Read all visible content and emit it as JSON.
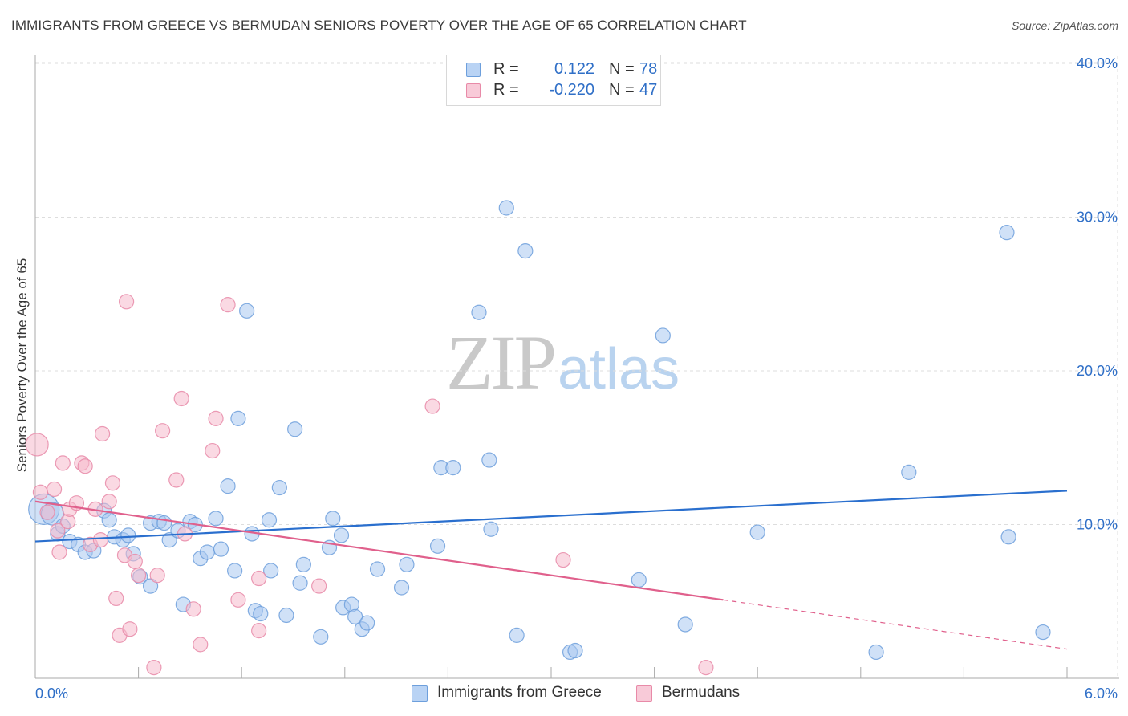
{
  "title": "IMMIGRANTS FROM GREECE VS BERMUDAN SENIORS POVERTY OVER THE AGE OF 65 CORRELATION CHART",
  "source": "Source: ZipAtlas.com",
  "watermark": {
    "zip": "ZIP",
    "atlas": "atlas"
  },
  "colors": {
    "blue_fill": "#a9c9f0",
    "blue_stroke": "#6d9fdc",
    "blue_line": "#2a6fce",
    "pink_fill": "#f5b9cc",
    "pink_stroke": "#e88aa8",
    "pink_line": "#e0608c",
    "tick_text": "#2f6fc7",
    "grid": "#dddddd"
  },
  "legend": {
    "series1": {
      "r_label": "R =",
      "r_value": "0.122",
      "n_label": "N =",
      "n_value": "78"
    },
    "series2": {
      "r_label": "R =",
      "r_value": "-0.220",
      "n_label": "N =",
      "n_value": "47"
    }
  },
  "bottom_legend": {
    "series1": "Immigrants from Greece",
    "series2": "Bermudans"
  },
  "chart_data": {
    "type": "scatter",
    "title": "IMMIGRANTS FROM GREECE VS BERMUDAN SENIORS POVERTY OVER THE AGE OF 65 CORRELATION CHART",
    "xlabel": "",
    "ylabel": "Seniors Poverty Over the Age of 65",
    "xlim": [
      0,
      6
    ],
    "ylim": [
      0,
      42
    ],
    "x_tick_labels": [
      {
        "value": 0,
        "label": "0.0%"
      },
      {
        "value": 6,
        "label": "6.0%"
      }
    ],
    "y_tick_labels": [
      {
        "value": 10,
        "label": "10.0%"
      },
      {
        "value": 20,
        "label": "20.0%"
      },
      {
        "value": 30,
        "label": "30.0%"
      },
      {
        "value": 40,
        "label": "40.0%"
      }
    ],
    "x_minor_ticks": [
      0.6,
      1.2,
      1.8,
      2.4,
      3.0,
      3.6,
      4.2,
      4.8,
      5.4,
      6.0
    ],
    "grid": true,
    "legend_position": "top-center",
    "series": [
      {
        "name": "Immigrants from Greece",
        "trend": {
          "x0": 0,
          "y0": 8.9,
          "x1": 6,
          "y1": 12.2,
          "dashed_from": null
        },
        "points": [
          {
            "x": 0.05,
            "y": 11.0,
            "size": 3
          },
          {
            "x": 0.1,
            "y": 10.7,
            "size": 2
          },
          {
            "x": 0.13,
            "y": 9.4,
            "size": 1
          },
          {
            "x": 0.16,
            "y": 9.9,
            "size": 1
          },
          {
            "x": 0.2,
            "y": 8.9,
            "size": 1
          },
          {
            "x": 0.25,
            "y": 8.7,
            "size": 1
          },
          {
            "x": 0.29,
            "y": 8.2,
            "size": 1
          },
          {
            "x": 0.34,
            "y": 8.3,
            "size": 1
          },
          {
            "x": 0.4,
            "y": 10.9,
            "size": 1
          },
          {
            "x": 0.43,
            "y": 10.3,
            "size": 1
          },
          {
            "x": 0.46,
            "y": 9.2,
            "size": 1
          },
          {
            "x": 0.51,
            "y": 9.0,
            "size": 1
          },
          {
            "x": 0.54,
            "y": 9.3,
            "size": 1
          },
          {
            "x": 0.57,
            "y": 8.1,
            "size": 1
          },
          {
            "x": 0.61,
            "y": 6.6,
            "size": 1
          },
          {
            "x": 0.67,
            "y": 10.1,
            "size": 1
          },
          {
            "x": 0.67,
            "y": 6.0,
            "size": 1
          },
          {
            "x": 0.72,
            "y": 10.2,
            "size": 1
          },
          {
            "x": 0.75,
            "y": 10.1,
            "size": 1
          },
          {
            "x": 0.78,
            "y": 9.0,
            "size": 1
          },
          {
            "x": 0.83,
            "y": 9.6,
            "size": 1
          },
          {
            "x": 0.86,
            "y": 4.8,
            "size": 1
          },
          {
            "x": 0.9,
            "y": 10.2,
            "size": 1
          },
          {
            "x": 0.93,
            "y": 10.0,
            "size": 1
          },
          {
            "x": 0.96,
            "y": 7.8,
            "size": 1
          },
          {
            "x": 1.0,
            "y": 8.2,
            "size": 1
          },
          {
            "x": 1.05,
            "y": 10.4,
            "size": 1
          },
          {
            "x": 1.08,
            "y": 8.4,
            "size": 1
          },
          {
            "x": 1.12,
            "y": 12.5,
            "size": 1
          },
          {
            "x": 1.16,
            "y": 7.0,
            "size": 1
          },
          {
            "x": 1.18,
            "y": 16.9,
            "size": 1
          },
          {
            "x": 1.23,
            "y": 23.9,
            "size": 1
          },
          {
            "x": 1.26,
            "y": 9.4,
            "size": 1
          },
          {
            "x": 1.28,
            "y": 4.4,
            "size": 1
          },
          {
            "x": 1.31,
            "y": 4.2,
            "size": 1
          },
          {
            "x": 1.36,
            "y": 10.3,
            "size": 1
          },
          {
            "x": 1.37,
            "y": 7.0,
            "size": 1
          },
          {
            "x": 1.42,
            "y": 12.4,
            "size": 1
          },
          {
            "x": 1.46,
            "y": 4.1,
            "size": 1
          },
          {
            "x": 1.51,
            "y": 16.2,
            "size": 1
          },
          {
            "x": 1.54,
            "y": 6.2,
            "size": 1
          },
          {
            "x": 1.56,
            "y": 7.4,
            "size": 1
          },
          {
            "x": 1.66,
            "y": 2.7,
            "size": 1
          },
          {
            "x": 1.71,
            "y": 8.5,
            "size": 1
          },
          {
            "x": 1.73,
            "y": 10.4,
            "size": 1
          },
          {
            "x": 1.78,
            "y": 9.3,
            "size": 1
          },
          {
            "x": 1.79,
            "y": 4.6,
            "size": 1
          },
          {
            "x": 1.84,
            "y": 4.8,
            "size": 1
          },
          {
            "x": 1.86,
            "y": 4.0,
            "size": 1
          },
          {
            "x": 1.9,
            "y": 3.2,
            "size": 1
          },
          {
            "x": 1.93,
            "y": 3.6,
            "size": 1
          },
          {
            "x": 1.99,
            "y": 7.1,
            "size": 1
          },
          {
            "x": 2.13,
            "y": 5.9,
            "size": 1
          },
          {
            "x": 2.16,
            "y": 7.4,
            "size": 1
          },
          {
            "x": 2.34,
            "y": 8.6,
            "size": 1
          },
          {
            "x": 2.36,
            "y": 13.7,
            "size": 1
          },
          {
            "x": 2.43,
            "y": 13.7,
            "size": 1
          },
          {
            "x": 2.58,
            "y": 23.8,
            "size": 1
          },
          {
            "x": 2.64,
            "y": 14.2,
            "size": 1
          },
          {
            "x": 2.65,
            "y": 9.7,
            "size": 1
          },
          {
            "x": 2.74,
            "y": 30.6,
            "size": 1
          },
          {
            "x": 2.8,
            "y": 2.8,
            "size": 1
          },
          {
            "x": 2.85,
            "y": 27.8,
            "size": 1
          },
          {
            "x": 3.11,
            "y": 1.7,
            "size": 1
          },
          {
            "x": 3.14,
            "y": 1.8,
            "size": 1
          },
          {
            "x": 3.51,
            "y": 6.4,
            "size": 1
          },
          {
            "x": 3.65,
            "y": 22.3,
            "size": 1
          },
          {
            "x": 3.78,
            "y": 3.5,
            "size": 1
          },
          {
            "x": 4.2,
            "y": 9.5,
            "size": 1
          },
          {
            "x": 4.89,
            "y": 1.7,
            "size": 1
          },
          {
            "x": 5.08,
            "y": 13.4,
            "size": 1
          },
          {
            "x": 5.66,
            "y": 9.2,
            "size": 1
          },
          {
            "x": 5.65,
            "y": 29.0,
            "size": 1
          },
          {
            "x": 5.86,
            "y": 3.0,
            "size": 1
          }
        ]
      },
      {
        "name": "Bermudans",
        "trend": {
          "x0": 0,
          "y0": 11.5,
          "x1": 6,
          "y1": 1.9,
          "dashed_from": 4.0
        },
        "points": [
          {
            "x": 0.01,
            "y": 15.2,
            "size": 2
          },
          {
            "x": 0.03,
            "y": 12.1,
            "size": 1
          },
          {
            "x": 0.07,
            "y": 10.8,
            "size": 1
          },
          {
            "x": 0.11,
            "y": 12.3,
            "size": 1
          },
          {
            "x": 0.13,
            "y": 9.6,
            "size": 1
          },
          {
            "x": 0.14,
            "y": 8.2,
            "size": 1
          },
          {
            "x": 0.16,
            "y": 14.0,
            "size": 1
          },
          {
            "x": 0.19,
            "y": 10.2,
            "size": 1
          },
          {
            "x": 0.2,
            "y": 11.0,
            "size": 1
          },
          {
            "x": 0.24,
            "y": 11.4,
            "size": 1
          },
          {
            "x": 0.27,
            "y": 14.0,
            "size": 1
          },
          {
            "x": 0.29,
            "y": 13.8,
            "size": 1
          },
          {
            "x": 0.32,
            "y": 8.7,
            "size": 1
          },
          {
            "x": 0.35,
            "y": 11.0,
            "size": 1
          },
          {
            "x": 0.38,
            "y": 9.0,
            "size": 1
          },
          {
            "x": 0.39,
            "y": 15.9,
            "size": 1
          },
          {
            "x": 0.43,
            "y": 11.5,
            "size": 1
          },
          {
            "x": 0.45,
            "y": 12.7,
            "size": 1
          },
          {
            "x": 0.47,
            "y": 5.2,
            "size": 1
          },
          {
            "x": 0.49,
            "y": 2.8,
            "size": 1
          },
          {
            "x": 0.52,
            "y": 8.0,
            "size": 1
          },
          {
            "x": 0.53,
            "y": 24.5,
            "size": 1
          },
          {
            "x": 0.55,
            "y": 3.2,
            "size": 1
          },
          {
            "x": 0.58,
            "y": 7.6,
            "size": 1
          },
          {
            "x": 0.6,
            "y": 6.7,
            "size": 1
          },
          {
            "x": 0.69,
            "y": 0.7,
            "size": 1
          },
          {
            "x": 0.71,
            "y": 6.7,
            "size": 1
          },
          {
            "x": 0.74,
            "y": 16.1,
            "size": 1
          },
          {
            "x": 0.82,
            "y": 12.9,
            "size": 1
          },
          {
            "x": 0.85,
            "y": 18.2,
            "size": 1
          },
          {
            "x": 0.87,
            "y": 9.4,
            "size": 1
          },
          {
            "x": 0.92,
            "y": 4.5,
            "size": 1
          },
          {
            "x": 0.96,
            "y": 2.2,
            "size": 1
          },
          {
            "x": 1.03,
            "y": 14.8,
            "size": 1
          },
          {
            "x": 1.05,
            "y": 16.9,
            "size": 1
          },
          {
            "x": 1.12,
            "y": 24.3,
            "size": 1
          },
          {
            "x": 1.18,
            "y": 5.1,
            "size": 1
          },
          {
            "x": 1.3,
            "y": 6.5,
            "size": 1
          },
          {
            "x": 1.3,
            "y": 3.1,
            "size": 1
          },
          {
            "x": 1.65,
            "y": 6.0,
            "size": 1
          },
          {
            "x": 2.31,
            "y": 17.7,
            "size": 1
          },
          {
            "x": 3.07,
            "y": 7.7,
            "size": 1
          },
          {
            "x": 3.9,
            "y": 0.7,
            "size": 1
          }
        ]
      }
    ]
  }
}
